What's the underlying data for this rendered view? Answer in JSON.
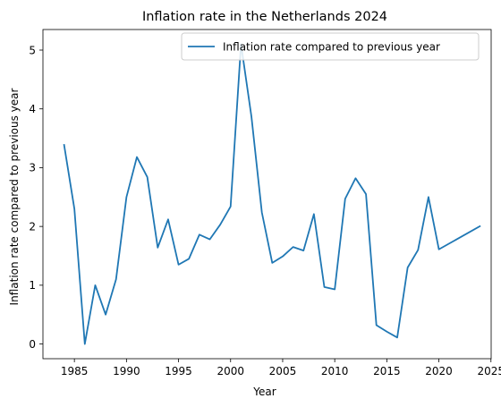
{
  "chart_data": {
    "type": "line",
    "title": "Inflation rate in the Netherlands 2024",
    "xlabel": "Year",
    "ylabel": "Inflation rate compared to previous year",
    "xlim": [
      1981.98,
      2025.02
    ],
    "ylim": [
      -0.25,
      5.35
    ],
    "xticks": [
      1985,
      1990,
      1995,
      2000,
      2005,
      2010,
      2015,
      2020,
      2025
    ],
    "yticks": [
      0,
      1,
      2,
      3,
      4,
      5
    ],
    "legend_position": "top-right",
    "grid": false,
    "series": [
      {
        "name": "Inflation rate compared to previous year",
        "color": "#1f77b4",
        "x": [
          1984,
          1985,
          1986,
          1987,
          1988,
          1989,
          1990,
          1991,
          1992,
          1993,
          1994,
          1995,
          1996,
          1997,
          1998,
          1999,
          2000,
          2001,
          2002,
          2003,
          2004,
          2005,
          2006,
          2007,
          2008,
          2009,
          2010,
          2011,
          2012,
          2013,
          2014,
          2015,
          2016,
          2017,
          2018,
          2019,
          2020,
          2024
        ],
        "values": [
          3.4,
          2.3,
          0.0,
          1.0,
          0.5,
          1.1,
          2.5,
          3.18,
          2.84,
          1.64,
          2.12,
          1.35,
          1.45,
          1.86,
          1.78,
          2.03,
          2.34,
          5.1,
          3.87,
          2.24,
          1.38,
          1.49,
          1.65,
          1.59,
          2.21,
          0.97,
          0.93,
          2.47,
          2.82,
          2.55,
          0.32,
          0.21,
          0.11,
          1.3,
          1.6,
          2.5,
          1.61,
          2.01
        ]
      }
    ]
  }
}
